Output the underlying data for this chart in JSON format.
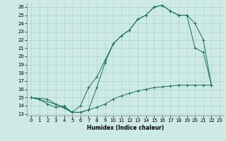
{
  "xlabel": "Humidex (Indice chaleur)",
  "bg_color": "#ceeae4",
  "grid_color": "#aed4cc",
  "line_color": "#1a6e60",
  "xlim": [
    -0.5,
    23.5
  ],
  "ylim": [
    12.8,
    26.5
  ],
  "xticks": [
    0,
    1,
    2,
    3,
    4,
    5,
    6,
    7,
    8,
    9,
    10,
    11,
    12,
    13,
    14,
    15,
    16,
    17,
    18,
    19,
    20,
    21,
    22,
    23
  ],
  "yticks": [
    13,
    14,
    15,
    16,
    17,
    18,
    19,
    20,
    21,
    22,
    23,
    24,
    25,
    26
  ],
  "line1_x": [
    0,
    1,
    2,
    3,
    4,
    5,
    6,
    7,
    8,
    9,
    10,
    11,
    12,
    13,
    14,
    15,
    16,
    17,
    18,
    19,
    20,
    21,
    22
  ],
  "line1_y": [
    15,
    14.8,
    14.2,
    13.8,
    14.0,
    13.2,
    13.2,
    13.5,
    16.2,
    19.2,
    21.5,
    22.5,
    23.2,
    24.5,
    25.0,
    26.0,
    26.2,
    25.5,
    25.0,
    25.0,
    21.0,
    20.5,
    16.5
  ],
  "line2_x": [
    0,
    3,
    5,
    6,
    7,
    8,
    9,
    10,
    11,
    12,
    13,
    14,
    15,
    16,
    17,
    18,
    19,
    20,
    21,
    22
  ],
  "line2_y": [
    15,
    14.2,
    13.2,
    14.0,
    16.2,
    17.5,
    19.5,
    21.5,
    22.5,
    23.2,
    24.5,
    25.0,
    26.0,
    26.2,
    25.5,
    25.0,
    25.0,
    24.0,
    22.0,
    16.5
  ],
  "line3_x": [
    0,
    2,
    3,
    4,
    5,
    6,
    7,
    8,
    9,
    10,
    11,
    12,
    13,
    14,
    15,
    16,
    17,
    18,
    19,
    20,
    21,
    22
  ],
  "line3_y": [
    15,
    14.8,
    14.2,
    13.8,
    13.2,
    13.2,
    13.5,
    13.8,
    14.2,
    14.8,
    15.2,
    15.5,
    15.8,
    16.0,
    16.2,
    16.3,
    16.4,
    16.5,
    16.5,
    16.5,
    16.5,
    16.5
  ]
}
